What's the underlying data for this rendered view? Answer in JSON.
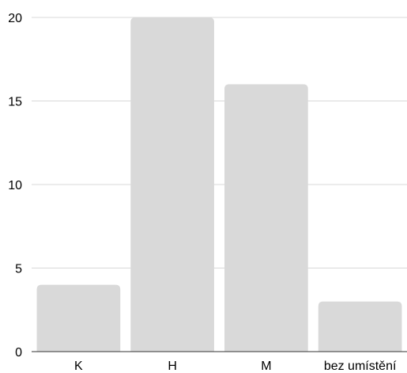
{
  "chart_data": {
    "type": "bar",
    "categories": [
      "K",
      "H",
      "M",
      "bez umístění"
    ],
    "values": [
      4,
      20,
      16,
      3
    ],
    "title": "",
    "xlabel": "",
    "ylabel": "",
    "ylim": [
      0,
      20
    ],
    "yticks": [
      0,
      5,
      10,
      15,
      20
    ],
    "grid": true,
    "legend": "none",
    "bar_color": "#d9d9d9",
    "grid_color": "#d9d9d9",
    "axis_color": "#333333"
  }
}
